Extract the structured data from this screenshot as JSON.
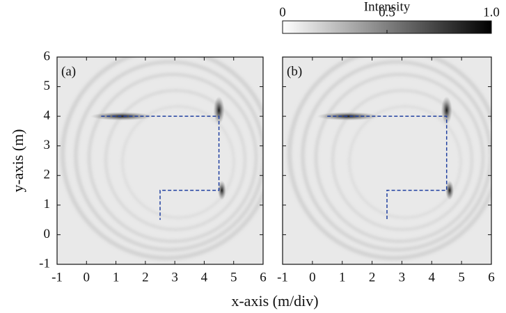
{
  "x_label": "x-axis (m/div)",
  "y_label": "y-axis (m)",
  "colorbar": {
    "title": "Intensity",
    "lim": [
      0,
      1
    ],
    "ticks": [
      0,
      0.5,
      {
        "value": 1,
        "label": "1.0"
      }
    ],
    "colors": [
      "#ffffff",
      "#000000"
    ]
  },
  "chart_data": [
    {
      "type": "heatmap",
      "label": "(a)",
      "xlim": [
        -1,
        6
      ],
      "ylim": [
        -1,
        6
      ],
      "xticks": [
        -1,
        0,
        1,
        2,
        3,
        4,
        5,
        6
      ],
      "yticks": [
        -1,
        0,
        1,
        2,
        3,
        4,
        5,
        6
      ],
      "show_ytick_labels": true,
      "series": [
        {
          "color": "#1f3fa0",
          "x": [
            0.5,
            4.5,
            4.5,
            2.5,
            2.5
          ],
          "y": [
            4,
            4,
            1.5,
            1.5,
            0.5
          ]
        }
      ]
    },
    {
      "type": "heatmap",
      "label": "(b)",
      "xlim": [
        -1,
        6
      ],
      "ylim": [
        -1,
        6
      ],
      "xticks": [
        -1,
        0,
        1,
        2,
        3,
        4,
        5,
        6
      ],
      "yticks": [
        -1,
        0,
        1,
        2,
        3,
        4,
        5,
        6
      ],
      "show_ytick_labels": false,
      "series": [
        {
          "color": "#1f3fa0",
          "x": [
            0.5,
            4.5,
            4.5,
            2.5,
            2.5
          ],
          "y": [
            4,
            4,
            1.5,
            1.5,
            0.5
          ]
        }
      ]
    }
  ]
}
